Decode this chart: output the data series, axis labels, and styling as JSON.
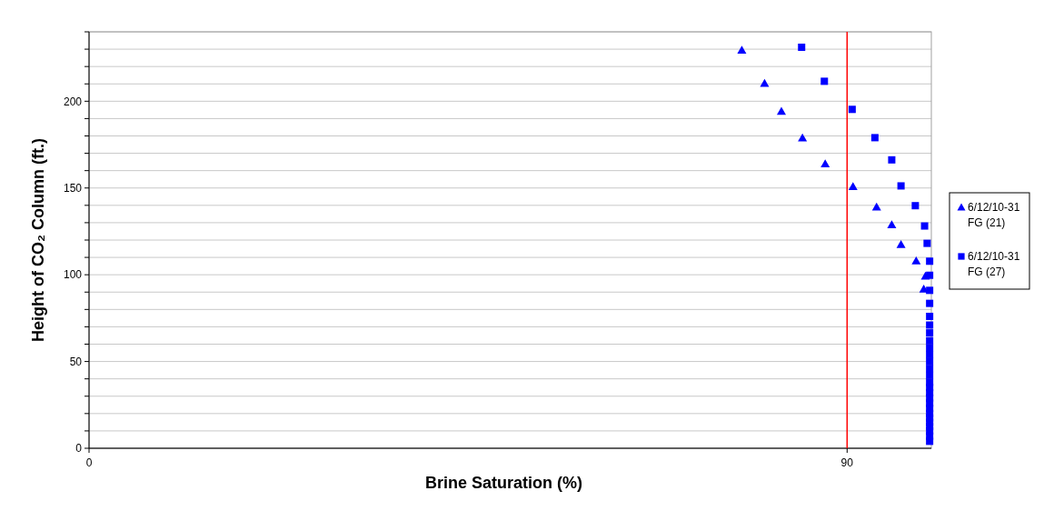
{
  "chart_data": {
    "type": "scatter",
    "xlabel": "Brine Saturation (%)",
    "ylabel": "Height of CO₂ Column (ft.)",
    "xlim": [
      0,
      100
    ],
    "xticks": [
      0,
      90
    ],
    "ylim": [
      0,
      240
    ],
    "yticks": [
      0,
      {
        "value": 10,
        "label": null
      },
      {
        "value": 20,
        "label": null
      },
      {
        "value": 30,
        "label": null
      },
      {
        "value": 40,
        "label": null
      },
      50,
      {
        "value": 60,
        "label": null
      },
      {
        "value": 70,
        "label": null
      },
      {
        "value": 80,
        "label": null
      },
      {
        "value": 90,
        "label": null
      },
      100,
      {
        "value": 110,
        "label": null
      },
      {
        "value": 120,
        "label": null
      },
      {
        "value": 130,
        "label": null
      },
      {
        "value": 140,
        "label": null
      },
      150,
      {
        "value": 160,
        "label": null
      },
      {
        "value": 170,
        "label": null
      },
      {
        "value": 180,
        "label": null
      },
      {
        "value": 190,
        "label": null
      },
      200,
      {
        "value": 210,
        "label": null
      },
      {
        "value": 220,
        "label": null
      },
      {
        "value": 230,
        "label": null
      },
      {
        "value": 240,
        "label": null
      }
    ],
    "grid": "y",
    "legend": "right",
    "ref_lines": [
      {
        "axis": "x",
        "value": 90,
        "color": "#ff0000"
      }
    ],
    "series": [
      {
        "name": "6/12/10-31 FG (21)",
        "color": "#0000ff",
        "marker": "triangle",
        "x": [
          77.5,
          80.2,
          82.2,
          84.7,
          87.4,
          90.7,
          93.5,
          95.3,
          96.4,
          98.2,
          99.3,
          99.1
        ],
        "values": [
          229.4,
          210.3,
          194.1,
          178.8,
          163.9,
          150.8,
          139.0,
          128.8,
          117.4,
          108.0,
          99.2,
          91.7
        ]
      },
      {
        "name": "6/12/10-31 FG (27)",
        "color": "#0000ff",
        "marker": "square",
        "x": [
          84.6,
          87.3,
          90.6,
          93.3,
          95.3,
          96.4,
          98.1,
          99.2,
          99.5,
          99.8,
          99.8,
          99.8,
          99.8,
          99.8,
          99.8,
          99.8,
          99.8,
          99.8,
          99.8,
          99.8,
          99.8,
          99.8,
          99.8,
          99.8,
          99.8,
          99.8,
          99.8,
          99.8,
          99.8,
          99.8,
          99.8,
          99.8,
          99.8,
          99.8,
          99.8
        ],
        "values": [
          231.1,
          211.5,
          195.3,
          179.0,
          166.2,
          151.2,
          139.8,
          128.1,
          118.1,
          107.8,
          99.7,
          91,
          83.5,
          76,
          71,
          66.5,
          62,
          58,
          54,
          50,
          46,
          42,
          38,
          35,
          32,
          29,
          26,
          23,
          20,
          17.5,
          15,
          12.5,
          10,
          7,
          4
        ]
      }
    ]
  }
}
